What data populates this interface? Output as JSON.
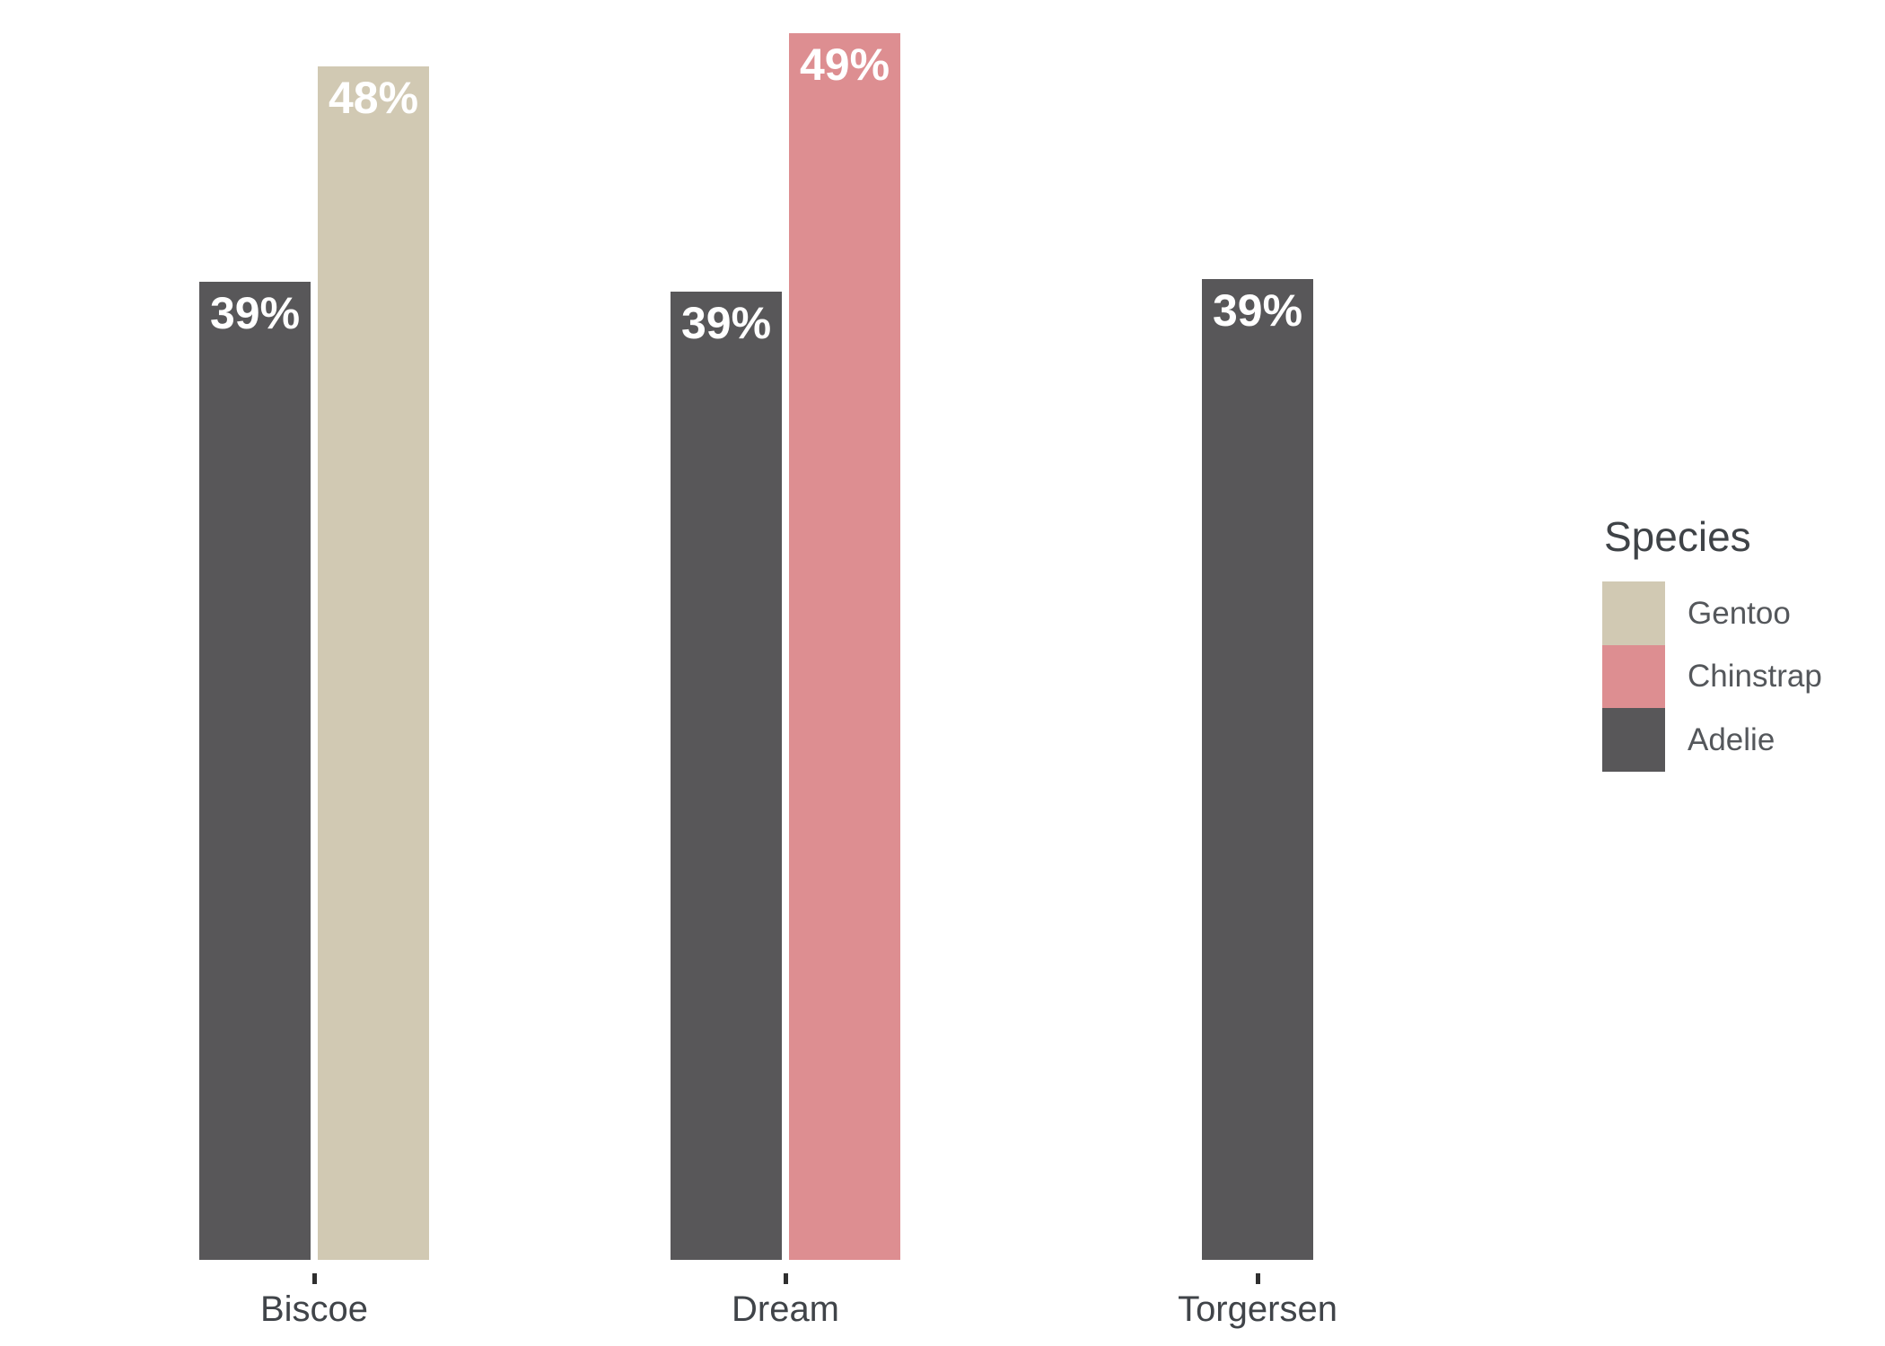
{
  "chart_data": {
    "type": "bar",
    "title": "",
    "xlabel": "",
    "ylabel": "",
    "value_suffix": "%",
    "grid": false,
    "legend_position": "right",
    "ylim": [
      0,
      53.5
    ],
    "categories": [
      "Biscoe",
      "Dream",
      "Torgersen"
    ],
    "groups": [
      {
        "label": "Biscoe",
        "bars": [
          {
            "series": "Adelie",
            "label": "39%",
            "value": 39.0
          },
          {
            "series": "Gentoo",
            "label": "48%",
            "value": 47.6
          }
        ]
      },
      {
        "label": "Dream",
        "bars": [
          {
            "series": "Adelie",
            "label": "39%",
            "value": 38.6
          },
          {
            "series": "Chinstrap",
            "label": "49%",
            "value": 48.9
          }
        ]
      },
      {
        "label": "Torgersen",
        "bars": [
          {
            "series": "Adelie",
            "label": "39%",
            "value": 39.1
          }
        ]
      }
    ]
  },
  "palette": {
    "Gentoo": "#d1c9b3",
    "Chinstrap": "#dd8e91",
    "Adelie": "#585759"
  },
  "text_colors": {
    "bar_value_label": "#ffffff",
    "axis_label": "#404449",
    "tick_mark": "#2f2f2f",
    "legend_title": "#3f4347",
    "legend_item": "#54575b"
  },
  "legend": {
    "title": "Species",
    "items": [
      {
        "label": "Gentoo"
      },
      {
        "label": "Chinstrap"
      },
      {
        "label": "Adelie"
      }
    ]
  }
}
